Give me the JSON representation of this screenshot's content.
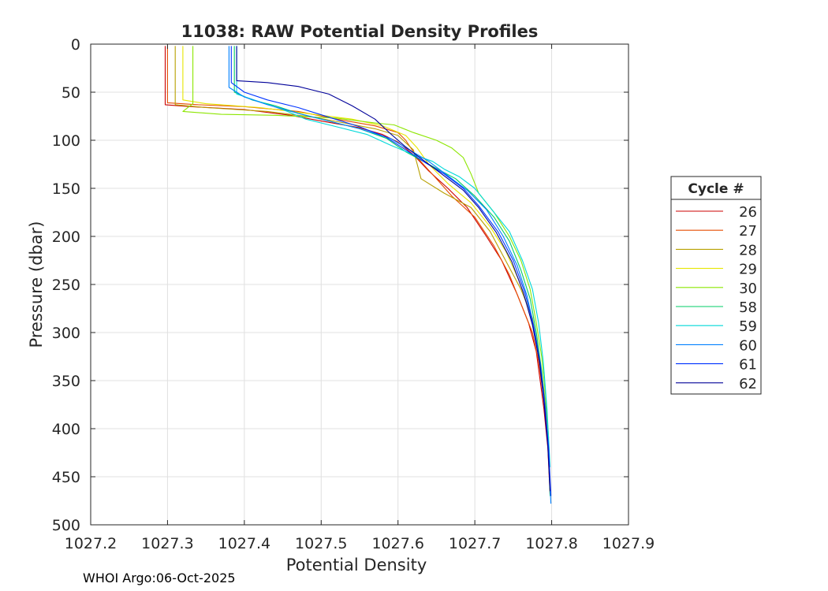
{
  "chart_data": {
    "type": "line",
    "title": "11038: RAW Potential Density Profiles",
    "xlabel": "Potential Density",
    "ylabel": "Pressure (dbar)",
    "xlim": [
      1027.2,
      1027.9
    ],
    "ylim": [
      0,
      500
    ],
    "y_reversed": true,
    "grid": true,
    "x_ticks": [
      "1027.2",
      "1027.3",
      "1027.4",
      "1027.5",
      "1027.6",
      "1027.7",
      "1027.8",
      "1027.9"
    ],
    "y_ticks": [
      "0",
      "50",
      "100",
      "150",
      "200",
      "250",
      "300",
      "350",
      "400",
      "450",
      "500"
    ],
    "legend": {
      "title": "Cycle #",
      "placement": "right"
    },
    "series": [
      {
        "name": "26",
        "color": "#cc0000",
        "points": [
          [
            1027.297,
            2
          ],
          [
            1027.297,
            63
          ],
          [
            1027.33,
            65
          ],
          [
            1027.4,
            68
          ],
          [
            1027.46,
            74
          ],
          [
            1027.5,
            80
          ],
          [
            1027.55,
            87
          ],
          [
            1027.58,
            94
          ],
          [
            1027.6,
            102
          ],
          [
            1027.62,
            115
          ],
          [
            1027.64,
            132
          ],
          [
            1027.665,
            150
          ],
          [
            1027.69,
            170
          ],
          [
            1027.715,
            200
          ],
          [
            1027.735,
            225
          ],
          [
            1027.755,
            260
          ],
          [
            1027.77,
            290
          ],
          [
            1027.78,
            320
          ],
          [
            1027.785,
            350
          ],
          [
            1027.79,
            380
          ],
          [
            1027.795,
            420
          ],
          [
            1027.798,
            470
          ]
        ]
      },
      {
        "name": "27",
        "color": "#e64d00",
        "points": [
          [
            1027.3,
            2
          ],
          [
            1027.3,
            61
          ],
          [
            1027.34,
            63
          ],
          [
            1027.4,
            65
          ],
          [
            1027.47,
            70
          ],
          [
            1027.52,
            78
          ],
          [
            1027.57,
            85
          ],
          [
            1027.6,
            92
          ],
          [
            1027.61,
            100
          ],
          [
            1027.625,
            118
          ],
          [
            1027.65,
            140
          ],
          [
            1027.67,
            158
          ],
          [
            1027.7,
            180
          ],
          [
            1027.725,
            210
          ],
          [
            1027.745,
            240
          ],
          [
            1027.76,
            270
          ],
          [
            1027.775,
            300
          ],
          [
            1027.783,
            330
          ],
          [
            1027.79,
            370
          ],
          [
            1027.795,
            410
          ],
          [
            1027.798,
            460
          ]
        ]
      },
      {
        "name": "28",
        "color": "#b8a000",
        "points": [
          [
            1027.31,
            2
          ],
          [
            1027.31,
            63
          ],
          [
            1027.35,
            66
          ],
          [
            1027.43,
            70
          ],
          [
            1027.49,
            76
          ],
          [
            1027.53,
            82
          ],
          [
            1027.57,
            88
          ],
          [
            1027.6,
            95
          ],
          [
            1027.62,
            110
          ],
          [
            1027.625,
            125
          ],
          [
            1027.63,
            140
          ],
          [
            1027.66,
            155
          ],
          [
            1027.695,
            170
          ],
          [
            1027.72,
            195
          ],
          [
            1027.74,
            225
          ],
          [
            1027.76,
            255
          ],
          [
            1027.775,
            285
          ],
          [
            1027.783,
            320
          ],
          [
            1027.79,
            360
          ],
          [
            1027.795,
            400
          ],
          [
            1027.798,
            460
          ]
        ]
      },
      {
        "name": "29",
        "color": "#e6e600",
        "points": [
          [
            1027.32,
            2
          ],
          [
            1027.32,
            58
          ],
          [
            1027.35,
            62
          ],
          [
            1027.42,
            66
          ],
          [
            1027.48,
            72
          ],
          [
            1027.54,
            78
          ],
          [
            1027.58,
            85
          ],
          [
            1027.61,
            95
          ],
          [
            1027.625,
            108
          ],
          [
            1027.64,
            125
          ],
          [
            1027.665,
            145
          ],
          [
            1027.695,
            165
          ],
          [
            1027.72,
            190
          ],
          [
            1027.74,
            215
          ],
          [
            1027.757,
            245
          ],
          [
            1027.77,
            275
          ],
          [
            1027.78,
            310
          ],
          [
            1027.787,
            345
          ],
          [
            1027.793,
            390
          ],
          [
            1027.797,
            440
          ]
        ]
      },
      {
        "name": "30",
        "color": "#8ce600",
        "points": [
          [
            1027.333,
            2
          ],
          [
            1027.333,
            62
          ],
          [
            1027.32,
            70
          ],
          [
            1027.37,
            73
          ],
          [
            1027.44,
            74
          ],
          [
            1027.52,
            77
          ],
          [
            1027.57,
            82
          ],
          [
            1027.595,
            84
          ],
          [
            1027.62,
            92
          ],
          [
            1027.65,
            100
          ],
          [
            1027.67,
            108
          ],
          [
            1027.685,
            118
          ],
          [
            1027.695,
            135
          ],
          [
            1027.705,
            155
          ],
          [
            1027.725,
            175
          ],
          [
            1027.745,
            200
          ],
          [
            1027.76,
            225
          ],
          [
            1027.772,
            255
          ],
          [
            1027.78,
            290
          ],
          [
            1027.787,
            325
          ],
          [
            1027.792,
            365
          ],
          [
            1027.796,
            410
          ]
        ]
      },
      {
        "name": "58",
        "color": "#00cc66",
        "points": [
          [
            1027.387,
            2
          ],
          [
            1027.387,
            50
          ],
          [
            1027.41,
            58
          ],
          [
            1027.44,
            64
          ],
          [
            1027.47,
            72
          ],
          [
            1027.51,
            80
          ],
          [
            1027.55,
            88
          ],
          [
            1027.585,
            98
          ],
          [
            1027.61,
            112
          ],
          [
            1027.64,
            125
          ],
          [
            1027.675,
            140
          ],
          [
            1027.7,
            158
          ],
          [
            1027.725,
            180
          ],
          [
            1027.745,
            205
          ],
          [
            1027.76,
            235
          ],
          [
            1027.772,
            265
          ],
          [
            1027.78,
            300
          ],
          [
            1027.787,
            340
          ],
          [
            1027.792,
            380
          ],
          [
            1027.796,
            430
          ],
          [
            1027.798,
            470
          ]
        ]
      },
      {
        "name": "59",
        "color": "#00d9d9",
        "points": [
          [
            1027.39,
            2
          ],
          [
            1027.39,
            52
          ],
          [
            1027.42,
            60
          ],
          [
            1027.45,
            68
          ],
          [
            1027.48,
            78
          ],
          [
            1027.52,
            86
          ],
          [
            1027.56,
            94
          ],
          [
            1027.59,
            105
          ],
          [
            1027.62,
            115
          ],
          [
            1027.645,
            122
          ],
          [
            1027.66,
            130
          ],
          [
            1027.68,
            138
          ],
          [
            1027.7,
            150
          ],
          [
            1027.72,
            170
          ],
          [
            1027.745,
            195
          ],
          [
            1027.762,
            225
          ],
          [
            1027.775,
            255
          ],
          [
            1027.783,
            290
          ],
          [
            1027.789,
            330
          ],
          [
            1027.794,
            380
          ],
          [
            1027.798,
            440
          ]
        ]
      },
      {
        "name": "60",
        "color": "#0080ff",
        "points": [
          [
            1027.38,
            2
          ],
          [
            1027.38,
            45
          ],
          [
            1027.4,
            55
          ],
          [
            1027.43,
            63
          ],
          [
            1027.47,
            72
          ],
          [
            1027.51,
            80
          ],
          [
            1027.55,
            88
          ],
          [
            1027.59,
            98
          ],
          [
            1027.615,
            110
          ],
          [
            1027.64,
            122
          ],
          [
            1027.665,
            137
          ],
          [
            1027.69,
            152
          ],
          [
            1027.715,
            172
          ],
          [
            1027.737,
            200
          ],
          [
            1027.755,
            230
          ],
          [
            1027.768,
            262
          ],
          [
            1027.778,
            298
          ],
          [
            1027.786,
            338
          ],
          [
            1027.792,
            380
          ],
          [
            1027.796,
            425
          ],
          [
            1027.799,
            478
          ]
        ]
      },
      {
        "name": "61",
        "color": "#0033ff",
        "points": [
          [
            1027.383,
            2
          ],
          [
            1027.383,
            40
          ],
          [
            1027.4,
            50
          ],
          [
            1027.43,
            58
          ],
          [
            1027.47,
            66
          ],
          [
            1027.51,
            76
          ],
          [
            1027.55,
            86
          ],
          [
            1027.585,
            97
          ],
          [
            1027.61,
            110
          ],
          [
            1027.635,
            123
          ],
          [
            1027.66,
            135
          ],
          [
            1027.685,
            150
          ],
          [
            1027.705,
            168
          ],
          [
            1027.73,
            195
          ],
          [
            1027.75,
            225
          ],
          [
            1027.765,
            258
          ],
          [
            1027.776,
            292
          ],
          [
            1027.785,
            332
          ],
          [
            1027.791,
            375
          ],
          [
            1027.796,
            420
          ],
          [
            1027.799,
            470
          ]
        ]
      },
      {
        "name": "62",
        "color": "#000099",
        "points": [
          [
            1027.39,
            2
          ],
          [
            1027.39,
            38
          ],
          [
            1027.43,
            40
          ],
          [
            1027.47,
            44
          ],
          [
            1027.51,
            52
          ],
          [
            1027.54,
            64
          ],
          [
            1027.57,
            78
          ],
          [
            1027.59,
            93
          ],
          [
            1027.61,
            107
          ],
          [
            1027.635,
            122
          ],
          [
            1027.66,
            137
          ],
          [
            1027.685,
            152
          ],
          [
            1027.705,
            170
          ],
          [
            1027.728,
            196
          ],
          [
            1027.748,
            226
          ],
          [
            1027.763,
            258
          ],
          [
            1027.775,
            292
          ],
          [
            1027.784,
            330
          ],
          [
            1027.79,
            372
          ],
          [
            1027.795,
            418
          ],
          [
            1027.798,
            465
          ]
        ]
      }
    ]
  },
  "footer": {
    "text": "WHOI Argo:06-Oct-2025"
  }
}
